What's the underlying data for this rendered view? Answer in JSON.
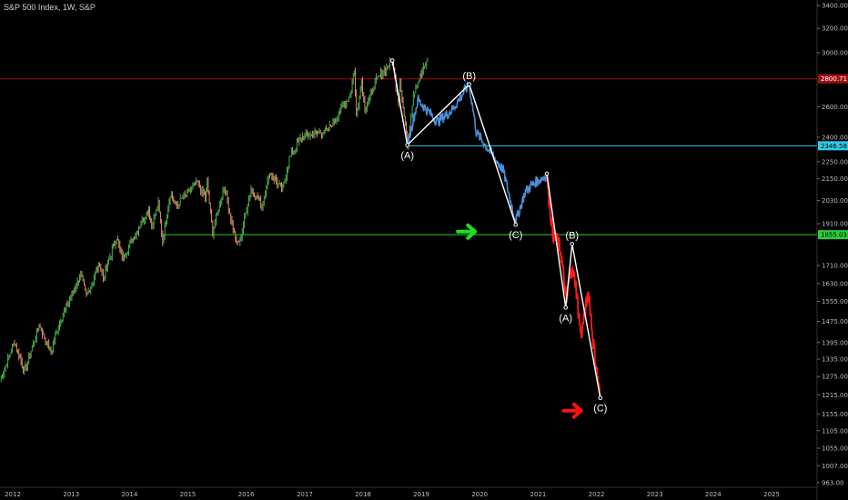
{
  "header": {
    "title": "S&P 500 Index, 1W, S&P"
  },
  "colors": {
    "background": "#000000",
    "up_candle": "#4caf50",
    "down_candle": "#e08a6a",
    "projection_blue": "#4a90d9",
    "projection_red": "#ff1a1a",
    "level_red": "#a01010",
    "level_cyan": "#33c8e8",
    "level_green": "#2ecc40",
    "arrow_green": "#22dd22",
    "arrow_red": "#ff1111"
  },
  "chart_data": {
    "type": "line",
    "title": "S&P 500 Index, 1W, S&P",
    "y_scale": "log",
    "ylim": [
      963,
      3400
    ],
    "xlim": [
      "2012-01-01",
      "2025-12-31"
    ],
    "x_tick_labels": [
      "2012",
      "2013",
      "2014",
      "2015",
      "2016",
      "2017",
      "2018",
      "2019",
      "2020",
      "2021",
      "2022",
      "2023",
      "2024",
      "2025"
    ],
    "y_tick_labels": [
      "3400.00",
      "3200.00",
      "3000.00",
      "2600.00",
      "2400.00",
      "2250.00",
      "2150.00",
      "2030.00",
      "1910.00",
      "1710.00",
      "1630.00",
      "1555.00",
      "1475.00",
      "1395.00",
      "1335.00",
      "1275.00",
      "1215.00",
      "1155.00",
      "1105.00",
      "1055.00",
      "1007.00",
      "963.00"
    ],
    "grid": false,
    "price_series": {
      "name": "S&P 500 weekly",
      "points": [
        [
          "2012-01-01",
          1260
        ],
        [
          "2012-04-01",
          1400
        ],
        [
          "2012-06-01",
          1290
        ],
        [
          "2012-09-01",
          1460
        ],
        [
          "2012-11-15",
          1360
        ],
        [
          "2013-01-01",
          1460
        ],
        [
          "2013-05-20",
          1670
        ],
        [
          "2013-06-24",
          1575
        ],
        [
          "2013-09-15",
          1720
        ],
        [
          "2013-10-08",
          1655
        ],
        [
          "2013-12-31",
          1845
        ],
        [
          "2014-02-03",
          1740
        ],
        [
          "2014-07-20",
          1985
        ],
        [
          "2014-08-07",
          1905
        ],
        [
          "2014-09-18",
          2011
        ],
        [
          "2014-10-15",
          1820
        ],
        [
          "2014-12-01",
          2070
        ],
        [
          "2015-01-05",
          2000
        ],
        [
          "2015-05-20",
          2130
        ],
        [
          "2015-07-08",
          2045
        ],
        [
          "2015-07-20",
          2128
        ],
        [
          "2015-08-24",
          1867
        ],
        [
          "2015-11-03",
          2110
        ],
        [
          "2016-01-20",
          1810
        ],
        [
          "2016-02-11",
          1829
        ],
        [
          "2016-04-20",
          2100
        ],
        [
          "2016-06-27",
          2000
        ],
        [
          "2016-08-15",
          2190
        ],
        [
          "2016-11-04",
          2085
        ],
        [
          "2016-12-15",
          2270
        ],
        [
          "2017-03-01",
          2400
        ],
        [
          "2017-08-10",
          2440
        ],
        [
          "2017-12-31",
          2680
        ],
        [
          "2018-01-26",
          2873
        ],
        [
          "2018-02-08",
          2532
        ],
        [
          "2018-03-12",
          2786
        ],
        [
          "2018-04-02",
          2580
        ],
        [
          "2018-06-12",
          2790
        ],
        [
          "2018-09-21",
          2940
        ],
        [
          "2018-10-29",
          2640
        ],
        [
          "2018-11-08",
          2806
        ],
        [
          "2018-12-24",
          2351
        ],
        [
          "2019-01-31",
          2700
        ],
        [
          "2019-03-15",
          2820
        ],
        [
          "2019-04-30",
          2940
        ]
      ]
    },
    "projection_blue": {
      "name": "projection 1",
      "points": [
        [
          "2018-12-24",
          2351
        ],
        [
          "2019-03-01",
          2650
        ],
        [
          "2019-07-01",
          2500
        ],
        [
          "2019-10-01",
          2580
        ],
        [
          "2020-01-15",
          2760
        ],
        [
          "2020-03-01",
          2430
        ],
        [
          "2020-06-01",
          2300
        ],
        [
          "2020-08-15",
          2200
        ],
        [
          "2020-11-01",
          1920
        ],
        [
          "2021-01-01",
          2080
        ],
        [
          "2021-03-01",
          2130
        ],
        [
          "2021-05-15",
          2170
        ]
      ]
    },
    "projection_red": {
      "name": "projection 2",
      "points": [
        [
          "2021-05-15",
          2170
        ],
        [
          "2021-06-20",
          1870
        ],
        [
          "2021-08-10",
          1780
        ],
        [
          "2021-09-15",
          1545
        ],
        [
          "2021-10-10",
          1700
        ],
        [
          "2021-11-10",
          1640
        ],
        [
          "2021-12-15",
          1420
        ],
        [
          "2022-02-01",
          1600
        ],
        [
          "2022-03-01",
          1400
        ],
        [
          "2022-04-15",
          1200
        ]
      ]
    },
    "wave_lines": [
      {
        "points": [
          [
            "2018-09-21",
            2940
          ],
          [
            "2018-12-24",
            2351
          ],
          [
            "2020-01-15",
            2760
          ],
          [
            "2020-11-01",
            1905
          ]
        ]
      },
      {
        "points": [
          [
            "2021-05-15",
            2180
          ],
          [
            "2021-09-10",
            1530
          ],
          [
            "2021-10-20",
            1810
          ],
          [
            "2022-04-15",
            1205
          ]
        ]
      }
    ],
    "wave_labels": [
      {
        "text": "(A)",
        "x": "2018-12-24",
        "y": 2351,
        "pos": "below"
      },
      {
        "text": "(B)",
        "x": "2020-01-15",
        "y": 2760,
        "pos": "above"
      },
      {
        "text": "(C)",
        "x": "2020-11-01",
        "y": 1905,
        "pos": "below"
      },
      {
        "text": "(A)",
        "x": "2021-09-10",
        "y": 1530,
        "pos": "below"
      },
      {
        "text": "(B)",
        "x": "2021-10-20",
        "y": 1810,
        "pos": "above"
      },
      {
        "text": "(C)",
        "x": "2022-04-15",
        "y": 1205,
        "pos": "below"
      }
    ],
    "levels": [
      {
        "value": 2800.71,
        "label": "2800.71",
        "color": "#a01010",
        "text_color": "#ffffff",
        "from": "2012-01-01"
      },
      {
        "value": 2346.58,
        "label": "2346.58",
        "color": "#33c8e8",
        "text_color": "#000000",
        "from": "2018-12-24"
      },
      {
        "value": 1855.03,
        "label": "1855.03",
        "color": "#2ecc40",
        "text_color": "#000000",
        "from": "2014-10-15"
      }
    ],
    "arrows": [
      {
        "color": "#22dd22",
        "x": "2020-01-01",
        "y": 1870
      },
      {
        "color": "#ff1111",
        "x": "2021-10-25",
        "y": 1165
      }
    ]
  }
}
